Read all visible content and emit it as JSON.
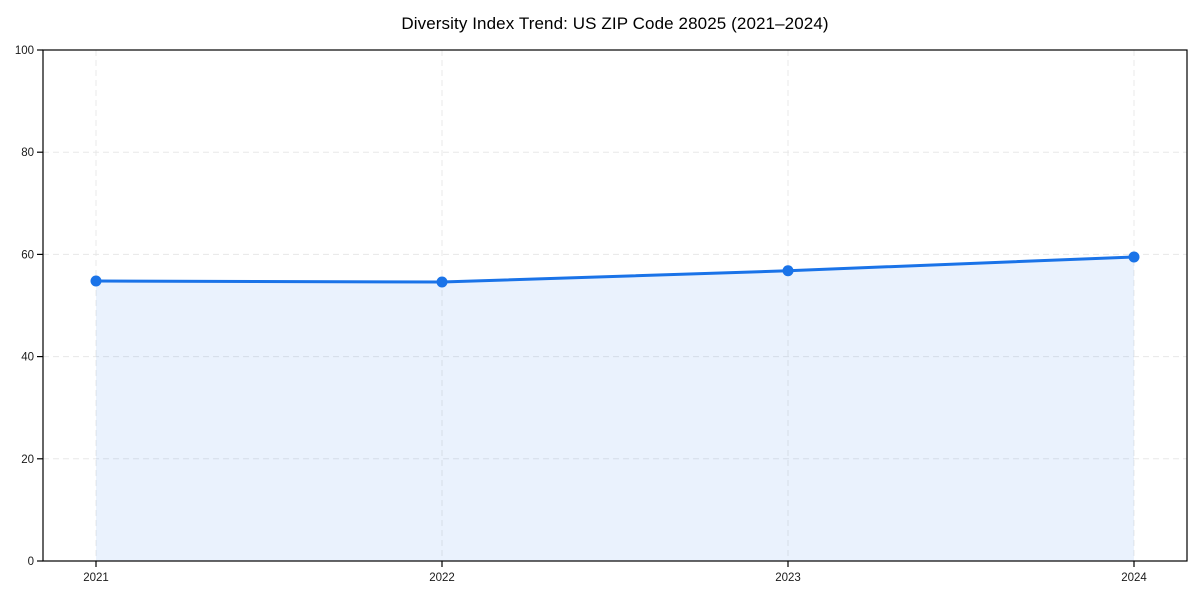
{
  "chart_data": {
    "type": "line",
    "title": "Diversity Index Trend: US ZIP Code 28025 (2021–2024)",
    "categories": [
      "2021",
      "2022",
      "2023",
      "2024"
    ],
    "series": [
      {
        "name": "Diversity Index",
        "values": [
          54.8,
          54.6,
          56.8,
          59.5
        ]
      }
    ],
    "xlabel": "",
    "ylabel": "",
    "ylim": [
      0,
      100
    ],
    "yticks": [
      0,
      20,
      40,
      60,
      80,
      100
    ],
    "grid": "dashed, horizontal at 20-80 and vertical at each year",
    "legend_position": "none",
    "style": {
      "line_color": "#1a73e8",
      "marker_color": "#1a73e8",
      "fill_color": "#1a73e8",
      "fill_opacity": 0.09,
      "grid_color": "#e8e8e8",
      "axis_color": "#000000",
      "background_color": "#ffffff",
      "line_width": 3,
      "marker_radius": 5.5
    }
  }
}
